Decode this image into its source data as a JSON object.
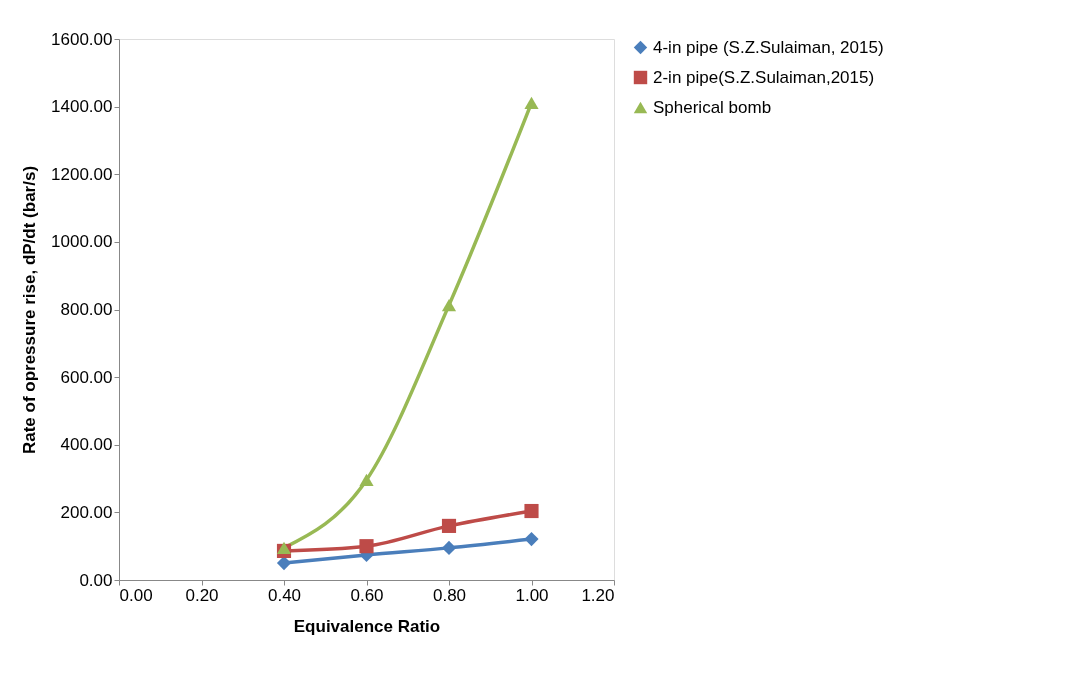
{
  "chart_data": {
    "type": "line",
    "xlabel": "Equivalence Ratio",
    "ylabel": "Rate of opressure rise, dP/dt (bar/s)",
    "x": [
      0.4,
      0.6,
      0.8,
      1.0
    ],
    "series": [
      {
        "name": "4-in pipe (S.Z.Sulaiman, 2015)",
        "color": "#4a7ebb",
        "marker": "diamond",
        "values": [
          50,
          74,
          95,
          121
        ]
      },
      {
        "name": "2-in pipe(S.Z.Sulaiman,2015)",
        "color": "#be4b48",
        "marker": "square",
        "values": [
          86,
          100,
          160,
          204
        ]
      },
      {
        "name": "Spherical bomb",
        "color": "#98b954",
        "marker": "triangle",
        "values": [
          95,
          296,
          813,
          1411
        ]
      }
    ],
    "xlim": [
      0,
      1.2
    ],
    "xticks": [
      {
        "value": 0,
        "label": "0.00"
      },
      {
        "value": 0.2,
        "label": "0.20"
      },
      {
        "value": 0.4,
        "label": "0.40"
      },
      {
        "value": 0.6,
        "label": "0.60"
      },
      {
        "value": 0.8,
        "label": "0.80"
      },
      {
        "value": 1.0,
        "label": "1.00"
      },
      {
        "value": 1.2,
        "label": "1.20"
      }
    ],
    "ylim": [
      0,
      1600
    ],
    "yticks": [
      {
        "value": 0,
        "label": "0.00"
      },
      {
        "value": 200,
        "label": "200.00"
      },
      {
        "value": 400,
        "label": "400.00"
      },
      {
        "value": 600,
        "label": "600.00"
      },
      {
        "value": 800,
        "label": "800.00"
      },
      {
        "value": 1000,
        "label": "1000.00"
      },
      {
        "value": 1200,
        "label": "1200.00"
      },
      {
        "value": 1400,
        "label": "1400.00"
      },
      {
        "value": 1600,
        "label": "1600.00"
      }
    ],
    "grid": false,
    "legend": "right",
    "line_style": "solid"
  }
}
